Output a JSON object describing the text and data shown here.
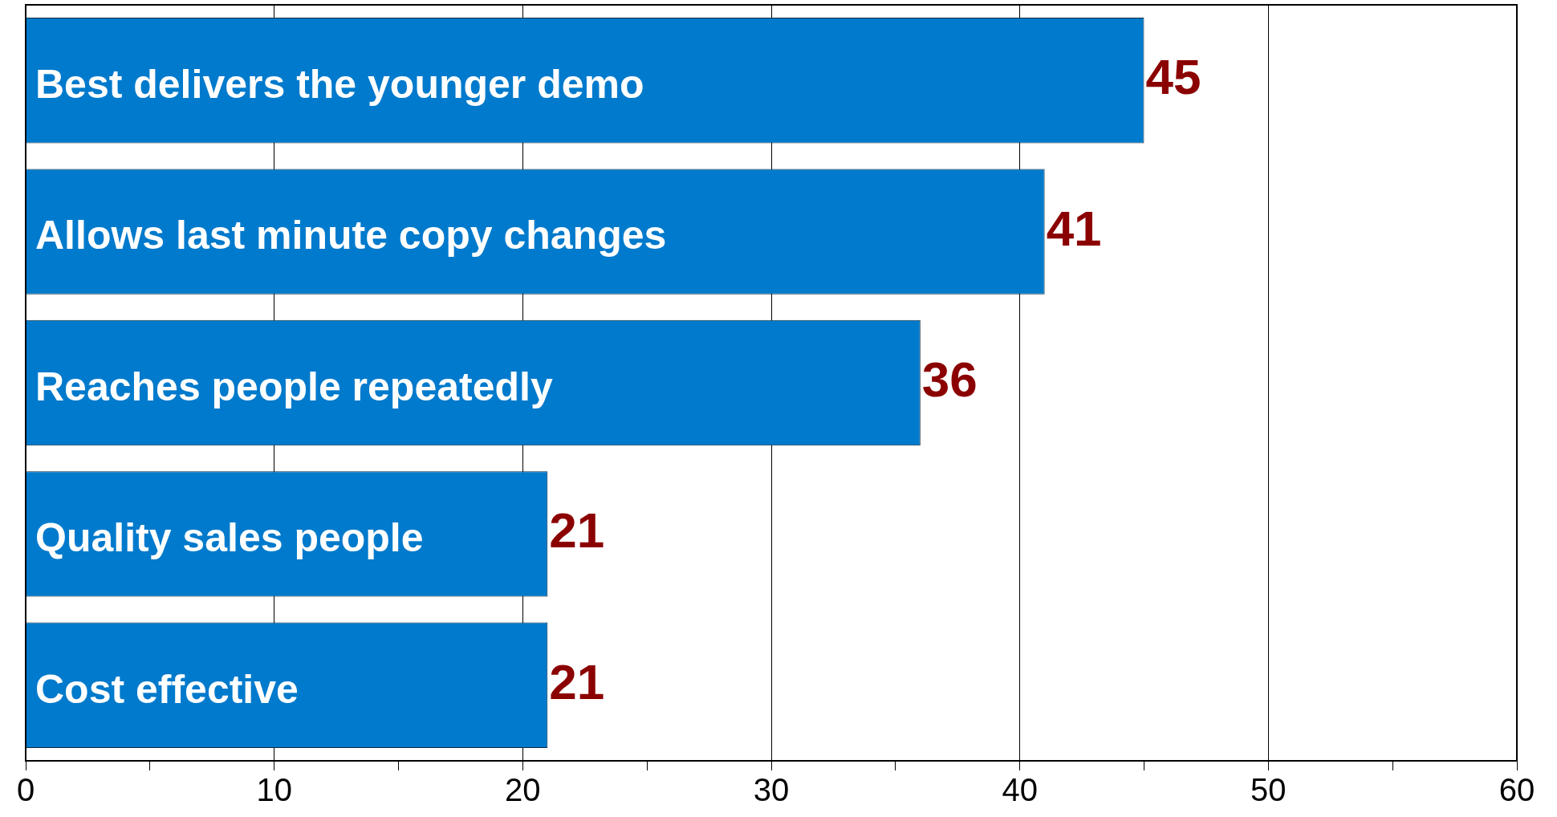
{
  "chart_data": {
    "type": "bar",
    "orientation": "horizontal",
    "categories": [
      "Best delivers the younger demo",
      "Allows last minute copy changes",
      "Reaches people repeatedly",
      "Quality sales people",
      "Cost effective"
    ],
    "values": [
      45,
      41,
      36,
      21,
      21
    ],
    "color": "#007acc",
    "xlim": [
      0,
      60
    ],
    "xticks": [
      0,
      {
        "value": 5,
        "label": null
      },
      10,
      {
        "value": 15,
        "label": null
      },
      20,
      {
        "value": 25,
        "label": null
      },
      30,
      {
        "value": 35,
        "label": null
      },
      40,
      {
        "value": 45,
        "label": null
      },
      50,
      {
        "value": 55,
        "label": null
      },
      60
    ],
    "grid": "x",
    "legend": false,
    "tick_labels": "x",
    "data_labels": true
  }
}
